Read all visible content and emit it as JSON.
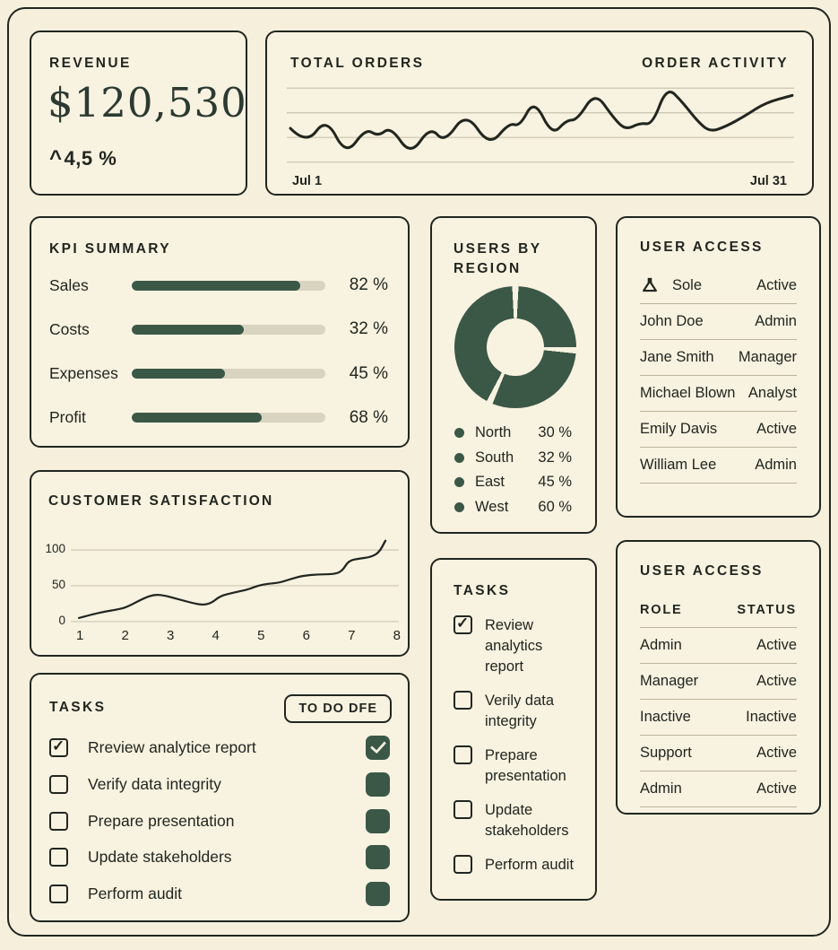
{
  "revenue": {
    "title": "REVENUE",
    "value": "$120,530",
    "delta_caret": "^",
    "delta": "4,5 %"
  },
  "orders": {
    "title": "TOTAL ORDERS",
    "activity_label": "ORDER ACTIVITY",
    "x_start": "Jul 1",
    "x_end": "Jul 31",
    "series": [
      [
        4,
        44
      ],
      [
        22,
        26
      ],
      [
        44,
        56
      ],
      [
        66,
        14
      ],
      [
        88,
        44
      ],
      [
        102,
        35
      ],
      [
        116,
        46
      ],
      [
        138,
        14
      ],
      [
        160,
        46
      ],
      [
        176,
        28
      ],
      [
        200,
        62
      ],
      [
        226,
        24
      ],
      [
        248,
        50
      ],
      [
        260,
        46
      ],
      [
        276,
        76
      ],
      [
        296,
        36
      ],
      [
        312,
        53
      ],
      [
        324,
        53
      ],
      [
        344,
        84
      ],
      [
        364,
        56
      ],
      [
        378,
        42
      ],
      [
        394,
        50
      ],
      [
        408,
        48
      ],
      [
        424,
        90
      ],
      [
        442,
        72
      ],
      [
        458,
        52
      ],
      [
        472,
        40
      ],
      [
        490,
        46
      ],
      [
        512,
        58
      ],
      [
        534,
        72
      ],
      [
        564,
        80
      ]
    ]
  },
  "kpi": {
    "title": "KPI SUMMARY",
    "rows": [
      {
        "label": "Sales",
        "value": "82 %",
        "fill": 87
      },
      {
        "label": "Costs",
        "value": "32 %",
        "fill": 58
      },
      {
        "label": "Expenses",
        "value": "45 %",
        "fill": 48
      },
      {
        "label": "Profit",
        "value": "68 %",
        "fill": 67
      }
    ]
  },
  "region": {
    "title": "USERS BY REGION",
    "legend": [
      {
        "label": "North",
        "value": "30 %"
      },
      {
        "label": "South",
        "value": "32 %"
      },
      {
        "label": "East",
        "value": "45 %"
      },
      {
        "label": "West",
        "value": "60 %"
      }
    ]
  },
  "access1": {
    "title": "USER ACCESS",
    "header": {
      "name": "Sole",
      "status": "Active"
    },
    "rows": [
      {
        "name": "John Doe",
        "role": "Admin"
      },
      {
        "name": "Jane Smith",
        "role": "Manager"
      },
      {
        "name": "Michael Blown",
        "role": "Analyst"
      },
      {
        "name": "Emily Davis",
        "role": "Active"
      },
      {
        "name": "William Lee",
        "role": "Admin"
      }
    ]
  },
  "satisfaction": {
    "title": "CUSTOMER SATISFACTION",
    "yticks": [
      "100",
      "50",
      "0"
    ],
    "xticks": [
      "1",
      "2",
      "3",
      "4",
      "5",
      "6",
      "7",
      "8"
    ],
    "points": [
      [
        1,
        5
      ],
      [
        1.3,
        10
      ],
      [
        1.6,
        14
      ],
      [
        1.9,
        17
      ],
      [
        2.1,
        20
      ],
      [
        2.5,
        33
      ],
      [
        2.75,
        38
      ],
      [
        3,
        36
      ],
      [
        3.3,
        31
      ],
      [
        3.6,
        26
      ],
      [
        3.85,
        23
      ],
      [
        4.05,
        26
      ],
      [
        4.25,
        36
      ],
      [
        4.6,
        41
      ],
      [
        4.9,
        45
      ],
      [
        5.1,
        50
      ],
      [
        5.35,
        53
      ],
      [
        5.6,
        54
      ],
      [
        5.9,
        60
      ],
      [
        6.15,
        64
      ],
      [
        6.5,
        66
      ],
      [
        6.85,
        66
      ],
      [
        7.05,
        70
      ],
      [
        7.2,
        85
      ],
      [
        7.45,
        88
      ],
      [
        7.7,
        90
      ],
      [
        7.9,
        96
      ],
      [
        8.05,
        113
      ]
    ]
  },
  "tasks_left": {
    "title": "TASKS",
    "button": "TO DO DFE",
    "items": [
      {
        "label": "Rreview analytice report",
        "checked": true
      },
      {
        "label": "Verify data integrity",
        "checked": false
      },
      {
        "label": "Prepare presentation",
        "checked": false
      },
      {
        "label": "Update stakeholders",
        "checked": false
      },
      {
        "label": "Perform audit",
        "checked": false
      }
    ]
  },
  "tasks_mid": {
    "title": "TASKS",
    "items": [
      {
        "label": "Review analytics report",
        "checked": true
      },
      {
        "label": "Verily data integrity",
        "checked": false
      },
      {
        "label": "Prepare presentation",
        "checked": false
      },
      {
        "label": "Update stakeholders",
        "checked": false
      },
      {
        "label": "Perform audit",
        "checked": false
      }
    ]
  },
  "access2": {
    "title": "USER ACCESS",
    "columns": [
      "ROLE",
      "STATUS"
    ],
    "rows": [
      {
        "role": "Admin",
        "status": "Active"
      },
      {
        "role": "Manager",
        "status": "Active"
      },
      {
        "role": "Inactive",
        "status": "Inactive"
      },
      {
        "role": "Support",
        "status": "Active"
      },
      {
        "role": "Admin",
        "status": "Active"
      }
    ]
  },
  "colors": {
    "green": "#3b5847",
    "cream": "#f6efdc",
    "ink": "#21261f"
  }
}
